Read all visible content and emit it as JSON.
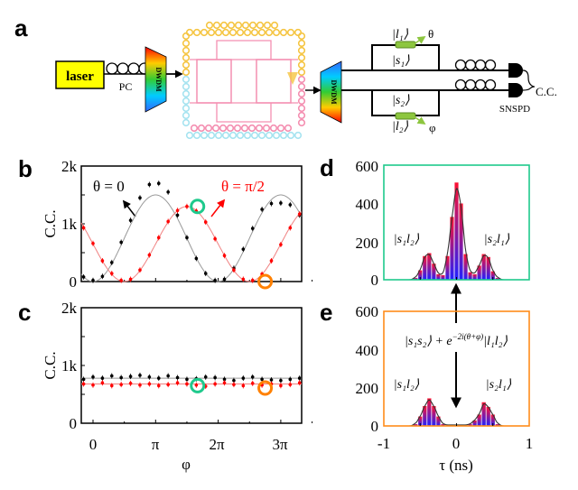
{
  "panel_labels": {
    "a": "a",
    "b": "b",
    "c": "c",
    "d": "d",
    "e": "e"
  },
  "setup": {
    "laser": "laser",
    "pc": "PC",
    "dwdm1": "DWDM",
    "dwdm2": "DWDM",
    "ket_l1": "|l₁⟩",
    "ket_s1": "|s₁⟩",
    "ket_s2": "|s₂⟩",
    "ket_l2": "|l₂⟩",
    "theta": "θ",
    "phi": "φ",
    "snspd": "SNSPD",
    "cc": "C.C.",
    "colors": {
      "laser": "#ffff00",
      "phase_shifter": "#8dc63f",
      "ring_pink": "#f48fb1",
      "ring_cyan": "#a6e3f0",
      "ring_gold": "#f5c542"
    }
  },
  "chart_data": [
    {
      "id": "b",
      "type": "scatter",
      "ylabel": "C.C.",
      "yticks": [
        "0",
        "1k",
        "2k"
      ],
      "ylim": [
        0,
        2000
      ],
      "xticks": [
        "0",
        "π",
        "2π",
        "3π"
      ],
      "xlim_pi": [
        -0.19,
        3.35
      ],
      "annotations": {
        "theta0": "θ = 0",
        "theta_pi2": "θ = π/2"
      },
      "x_pi": [
        -0.15,
        0,
        0.15,
        0.3,
        0.45,
        0.6,
        0.75,
        0.9,
        1.05,
        1.2,
        1.35,
        1.5,
        1.65,
        1.8,
        1.95,
        2.1,
        2.25,
        2.4,
        2.55,
        2.7,
        2.85,
        3.0,
        3.15,
        3.3
      ],
      "series": [
        {
          "color": "#000000",
          "fit_color": "#999999",
          "values": [
            80,
            20,
            90,
            330,
            680,
            1060,
            1450,
            1680,
            1700,
            1550,
            1150,
            760,
            400,
            140,
            20,
            40,
            230,
            560,
            920,
            1250,
            1350,
            1360,
            1330,
            1150
          ],
          "fit": [
            82,
            0,
            82,
            309,
            633,
            982,
            1280,
            1463,
            1491,
            1357,
            1090,
            750,
            410,
            143,
            9,
            37,
            220,
            518,
            867,
            1191,
            1418,
            1500,
            1418,
            1191
          ]
        },
        {
          "color": "#ff0000",
          "fit_color": "#f08080",
          "values": [
            930,
            660,
            360,
            140,
            20,
            40,
            200,
            460,
            760,
            1040,
            1230,
            1300,
            1220,
            1030,
            740,
            450,
            200,
            40,
            20,
            130,
            360,
            640,
            930,
            1170
          ],
          "fit": [
            945,
            650,
            355,
            124,
            8,
            32,
            190,
            449,
            751,
            1032,
            1229,
            1300,
            1229,
            1032,
            751,
            449,
            190,
            32,
            8,
            124,
            355,
            650,
            945,
            1176
          ]
        }
      ],
      "markers": [
        {
          "x_pi": 1.67,
          "y": 1300,
          "color": "#1ec98c"
        },
        {
          "x_pi": 2.75,
          "y": 0,
          "color": "#ff8000"
        }
      ]
    },
    {
      "id": "c",
      "type": "scatter",
      "ylabel": "C.C.",
      "yticks": [
        "0",
        "1k",
        "2k"
      ],
      "ylim": [
        0,
        2000
      ],
      "xticks": [
        "0",
        "π",
        "2π",
        "3π"
      ],
      "xlabel": "φ",
      "xlim_pi": [
        -0.19,
        3.35
      ],
      "x_pi": [
        -0.15,
        0,
        0.15,
        0.3,
        0.45,
        0.6,
        0.75,
        0.9,
        1.05,
        1.2,
        1.35,
        1.5,
        1.65,
        1.8,
        1.95,
        2.1,
        2.25,
        2.4,
        2.55,
        2.7,
        2.85,
        3.0,
        3.15,
        3.3
      ],
      "series": [
        {
          "color": "#000000",
          "fit_color": "#999999",
          "fit_level": 780,
          "values": [
            760,
            800,
            780,
            820,
            790,
            810,
            830,
            800,
            780,
            820,
            790,
            760,
            770,
            800,
            790,
            760,
            740,
            780,
            800,
            760,
            750,
            740,
            760,
            780
          ]
        },
        {
          "color": "#ff0000",
          "fit_color": "#f08080",
          "fit_level": 680,
          "values": [
            680,
            660,
            700,
            650,
            670,
            690,
            660,
            680,
            650,
            670,
            700,
            680,
            660,
            640,
            680,
            700,
            670,
            650,
            690,
            660,
            680,
            650,
            670,
            700
          ]
        }
      ],
      "markers": [
        {
          "x_pi": 1.67,
          "y": 650,
          "color": "#1ec98c"
        },
        {
          "x_pi": 2.75,
          "y": 610,
          "color": "#ff8000"
        }
      ]
    },
    {
      "id": "d",
      "type": "bar",
      "frame_color": "#1ec98c",
      "yticks": [
        "0",
        "200",
        "400",
        "600"
      ],
      "ylim": [
        0,
        600
      ],
      "xlim": [
        -1,
        1
      ],
      "labels": {
        "left": "|s₁l₂⟩",
        "right": "|s₂l₁⟩"
      },
      "x": [
        -0.5625,
        -0.5,
        -0.4375,
        -0.375,
        -0.3125,
        -0.25,
        -0.1875,
        -0.125,
        -0.0625,
        0,
        0.0625,
        0.125,
        0.1875,
        0.25,
        0.3125,
        0.375,
        0.4375,
        0.5,
        0.5625
      ],
      "values": [
        10,
        50,
        125,
        140,
        85,
        30,
        25,
        125,
        330,
        510,
        400,
        135,
        40,
        30,
        75,
        135,
        120,
        45,
        10
      ]
    },
    {
      "id": "e",
      "type": "bar",
      "frame_color": "#ff8c1a",
      "yticks": [
        "0",
        "200",
        "400",
        "600"
      ],
      "ylim": [
        0,
        600
      ],
      "xlim": [
        -1,
        1
      ],
      "xticks": [
        "-1",
        "0",
        "1"
      ],
      "xlabel": "τ (ns)",
      "labels": {
        "left": "|s₁l₂⟩",
        "right": "|s₂l₁⟩"
      },
      "state": {
        "part1": "|s₁s₂⟩ + e",
        "exponent": "−2i(θ+φ)",
        "part2": "|l₁l₂⟩"
      },
      "x": [
        -0.5625,
        -0.5,
        -0.4375,
        -0.375,
        -0.3125,
        -0.25,
        -0.1875,
        -0.125,
        -0.0625,
        0,
        0.0625,
        0.125,
        0.1875,
        0.25,
        0.3125,
        0.375,
        0.4375,
        0.5,
        0.5625
      ],
      "values": [
        10,
        50,
        105,
        145,
        105,
        50,
        10,
        5,
        5,
        5,
        5,
        5,
        10,
        30,
        60,
        125,
        100,
        60,
        10
      ]
    }
  ]
}
